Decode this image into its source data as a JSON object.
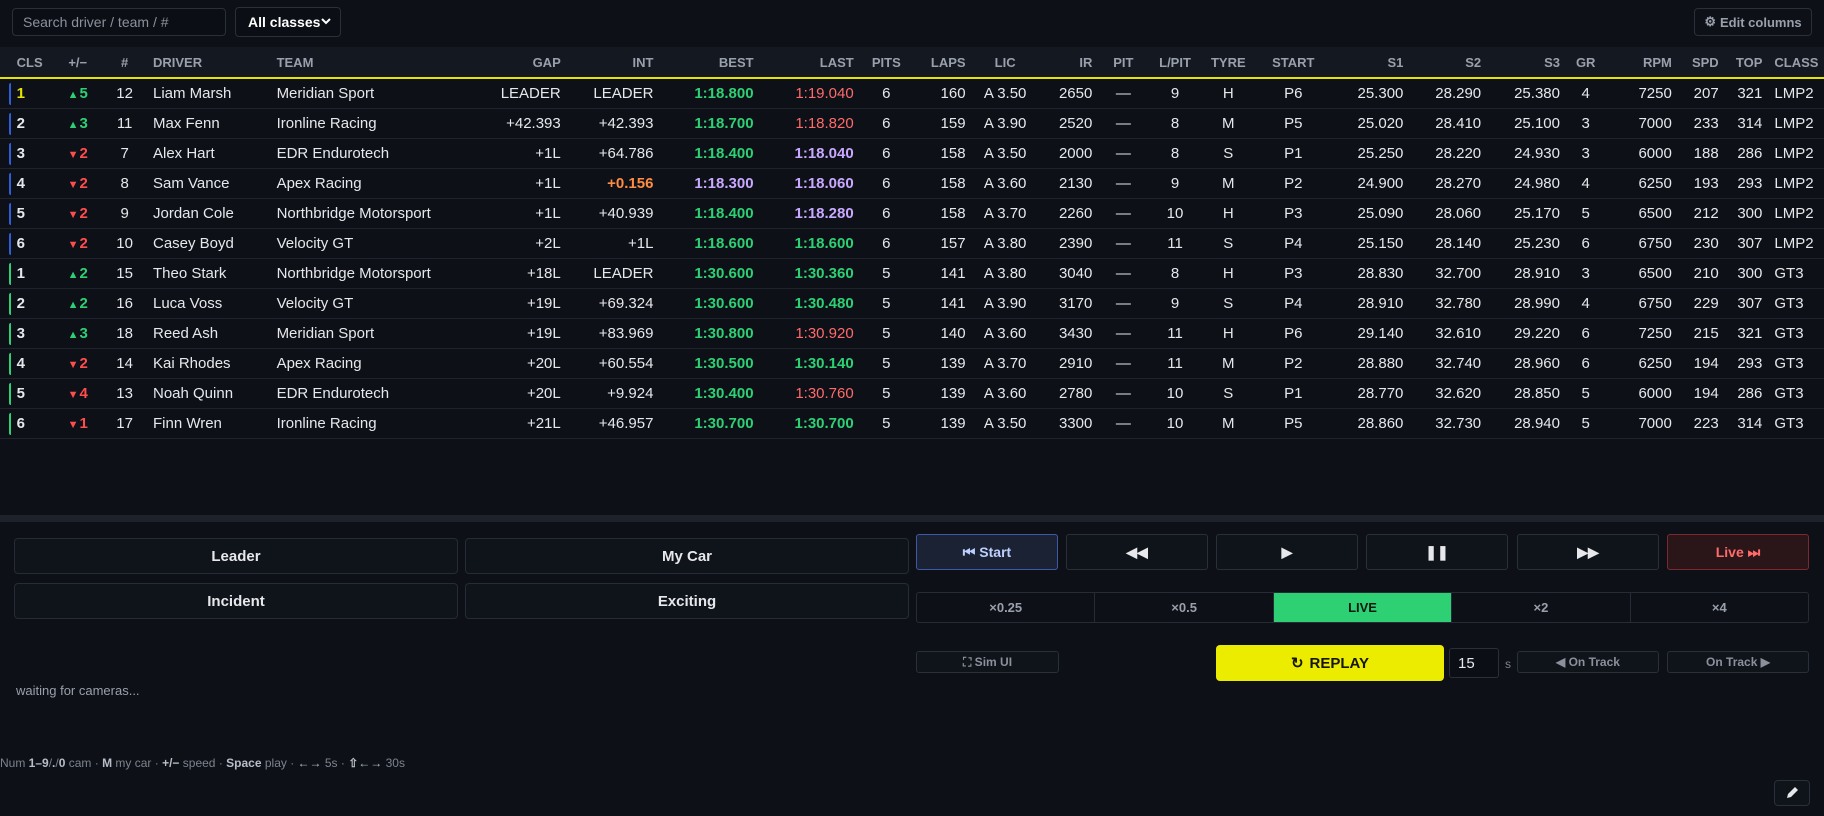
{
  "search": {
    "placeholder": "Search driver / team / #"
  },
  "class_filter": {
    "selected": "All classes"
  },
  "edit_columns": {
    "label": "Edit columns",
    "icon": "gear-icon"
  },
  "colors": {
    "yellow": "#e5e500",
    "lmp2": "#2f5fd8",
    "gt3": "#2ed074",
    "best_green": "#2ed074",
    "purple": "#c9a8ff",
    "red": "#ff6b6b",
    "orange": "#ff8c42"
  },
  "columns": [
    "CLS",
    "+/−",
    "#",
    "DRIVER",
    "TEAM",
    "GAP",
    "INT",
    "BEST",
    "LAST",
    "PITS",
    "LAPS",
    "LIC",
    "IR",
    "PIT",
    "L/PIT",
    "TYRE",
    "START",
    "S1",
    "S2",
    "S3",
    "GR",
    "RPM",
    "SPD",
    "TOP",
    "CLASS"
  ],
  "rows": [
    {
      "bar": "lmp2",
      "cls": "1",
      "cls_leader": true,
      "delta": "5",
      "dir": "up",
      "num": "12",
      "driver": "Liam Marsh",
      "team": "Meridian Sport",
      "gap": "LEADER",
      "int": "LEADER",
      "int_color": "",
      "best": "1:18.800",
      "best_color": "green",
      "last": "1:19.040",
      "last_color": "red",
      "pits": "6",
      "laps": "160",
      "lic": "A 3.50",
      "ir": "2650",
      "pit": "—",
      "lpit": "9",
      "tyre": "H",
      "start": "P6",
      "s1": "25.300",
      "s2": "28.290",
      "s3": "25.380",
      "gr": "4",
      "rpm": "7250",
      "spd": "207",
      "top": "321",
      "class": "LMP2"
    },
    {
      "bar": "lmp2",
      "cls": "2",
      "delta": "3",
      "dir": "up",
      "num": "11",
      "driver": "Max Fenn",
      "team": "Ironline Racing",
      "gap": "+42.393",
      "int": "+42.393",
      "int_color": "",
      "best": "1:18.700",
      "best_color": "green",
      "last": "1:18.820",
      "last_color": "red",
      "pits": "6",
      "laps": "159",
      "lic": "A 3.90",
      "ir": "2520",
      "pit": "—",
      "lpit": "8",
      "tyre": "M",
      "start": "P5",
      "s1": "25.020",
      "s2": "28.410",
      "s3": "25.100",
      "gr": "3",
      "rpm": "7000",
      "spd": "233",
      "top": "314",
      "class": "LMP2"
    },
    {
      "bar": "lmp2",
      "cls": "3",
      "delta": "2",
      "dir": "dn",
      "num": "7",
      "driver": "Alex Hart",
      "team": "EDR Endurotech",
      "gap": "+1L",
      "int": "+64.786",
      "int_color": "",
      "best": "1:18.400",
      "best_color": "green",
      "last": "1:18.040",
      "last_color": "purple",
      "pits": "6",
      "laps": "158",
      "lic": "A 3.50",
      "ir": "2000",
      "pit": "—",
      "lpit": "8",
      "tyre": "S",
      "start": "P1",
      "s1": "25.250",
      "s2": "28.220",
      "s3": "24.930",
      "gr": "3",
      "rpm": "6000",
      "spd": "188",
      "top": "286",
      "class": "LMP2"
    },
    {
      "bar": "lmp2",
      "cls": "4",
      "delta": "2",
      "dir": "dn",
      "num": "8",
      "driver": "Sam Vance",
      "team": "Apex Racing",
      "gap": "+1L",
      "int": "+0.156",
      "int_color": "orange",
      "best": "1:18.300",
      "best_color": "purple",
      "last": "1:18.060",
      "last_color": "purple",
      "pits": "6",
      "laps": "158",
      "lic": "A 3.60",
      "ir": "2130",
      "pit": "—",
      "lpit": "9",
      "tyre": "M",
      "start": "P2",
      "s1": "24.900",
      "s2": "28.270",
      "s3": "24.980",
      "gr": "4",
      "rpm": "6250",
      "spd": "193",
      "top": "293",
      "class": "LMP2"
    },
    {
      "bar": "lmp2",
      "cls": "5",
      "delta": "2",
      "dir": "dn",
      "num": "9",
      "driver": "Jordan Cole",
      "team": "Northbridge Motorsport",
      "gap": "+1L",
      "int": "+40.939",
      "int_color": "",
      "best": "1:18.400",
      "best_color": "green",
      "last": "1:18.280",
      "last_color": "purple",
      "pits": "6",
      "laps": "158",
      "lic": "A 3.70",
      "ir": "2260",
      "pit": "—",
      "lpit": "10",
      "tyre": "H",
      "start": "P3",
      "s1": "25.090",
      "s2": "28.060",
      "s3": "25.170",
      "gr": "5",
      "rpm": "6500",
      "spd": "212",
      "top": "300",
      "class": "LMP2"
    },
    {
      "bar": "lmp2",
      "cls": "6",
      "delta": "2",
      "dir": "dn",
      "num": "10",
      "driver": "Casey Boyd",
      "team": "Velocity GT",
      "gap": "+2L",
      "int": "+1L",
      "int_color": "",
      "best": "1:18.600",
      "best_color": "green",
      "last": "1:18.600",
      "last_color": "green",
      "pits": "6",
      "laps": "157",
      "lic": "A 3.80",
      "ir": "2390",
      "pit": "—",
      "lpit": "11",
      "tyre": "S",
      "start": "P4",
      "s1": "25.150",
      "s2": "28.140",
      "s3": "25.230",
      "gr": "6",
      "rpm": "6750",
      "spd": "230",
      "top": "307",
      "class": "LMP2"
    },
    {
      "bar": "gt3",
      "cls": "1",
      "delta": "2",
      "dir": "up",
      "num": "15",
      "driver": "Theo Stark",
      "team": "Northbridge Motorsport",
      "gap": "+18L",
      "int": "LEADER",
      "int_color": "",
      "best": "1:30.600",
      "best_color": "green",
      "last": "1:30.360",
      "last_color": "green",
      "pits": "5",
      "laps": "141",
      "lic": "A 3.80",
      "ir": "3040",
      "pit": "—",
      "lpit": "8",
      "tyre": "H",
      "start": "P3",
      "s1": "28.830",
      "s2": "32.700",
      "s3": "28.910",
      "gr": "3",
      "rpm": "6500",
      "spd": "210",
      "top": "300",
      "class": "GT3"
    },
    {
      "bar": "gt3",
      "cls": "2",
      "delta": "2",
      "dir": "up",
      "num": "16",
      "driver": "Luca Voss",
      "team": "Velocity GT",
      "gap": "+19L",
      "int": "+69.324",
      "int_color": "",
      "best": "1:30.600",
      "best_color": "green",
      "last": "1:30.480",
      "last_color": "green",
      "pits": "5",
      "laps": "141",
      "lic": "A 3.90",
      "ir": "3170",
      "pit": "—",
      "lpit": "9",
      "tyre": "S",
      "start": "P4",
      "s1": "28.910",
      "s2": "32.780",
      "s3": "28.990",
      "gr": "4",
      "rpm": "6750",
      "spd": "229",
      "top": "307",
      "class": "GT3"
    },
    {
      "bar": "gt3",
      "cls": "3",
      "delta": "3",
      "dir": "up",
      "num": "18",
      "driver": "Reed Ash",
      "team": "Meridian Sport",
      "gap": "+19L",
      "int": "+83.969",
      "int_color": "",
      "best": "1:30.800",
      "best_color": "green",
      "last": "1:30.920",
      "last_color": "red",
      "pits": "5",
      "laps": "140",
      "lic": "A 3.60",
      "ir": "3430",
      "pit": "—",
      "lpit": "11",
      "tyre": "H",
      "start": "P6",
      "s1": "29.140",
      "s2": "32.610",
      "s3": "29.220",
      "gr": "6",
      "rpm": "7250",
      "spd": "215",
      "top": "321",
      "class": "GT3"
    },
    {
      "bar": "gt3",
      "cls": "4",
      "delta": "2",
      "dir": "dn",
      "num": "14",
      "driver": "Kai Rhodes",
      "team": "Apex Racing",
      "gap": "+20L",
      "int": "+60.554",
      "int_color": "",
      "best": "1:30.500",
      "best_color": "green",
      "last": "1:30.140",
      "last_color": "green",
      "pits": "5",
      "laps": "139",
      "lic": "A 3.70",
      "ir": "2910",
      "pit": "—",
      "lpit": "11",
      "tyre": "M",
      "start": "P2",
      "s1": "28.880",
      "s2": "32.740",
      "s3": "28.960",
      "gr": "6",
      "rpm": "6250",
      "spd": "194",
      "top": "293",
      "class": "GT3"
    },
    {
      "bar": "gt3",
      "cls": "5",
      "delta": "4",
      "dir": "dn",
      "num": "13",
      "driver": "Noah Quinn",
      "team": "EDR Endurotech",
      "gap": "+20L",
      "int": "+9.924",
      "int_color": "",
      "best": "1:30.400",
      "best_color": "green",
      "last": "1:30.760",
      "last_color": "red",
      "pits": "5",
      "laps": "139",
      "lic": "A 3.60",
      "ir": "2780",
      "pit": "—",
      "lpit": "10",
      "tyre": "S",
      "start": "P1",
      "s1": "28.770",
      "s2": "32.620",
      "s3": "28.850",
      "gr": "5",
      "rpm": "6000",
      "spd": "194",
      "top": "286",
      "class": "GT3"
    },
    {
      "bar": "gt3",
      "cls": "6",
      "delta": "1",
      "dir": "dn",
      "num": "17",
      "driver": "Finn Wren",
      "team": "Ironline Racing",
      "gap": "+21L",
      "int": "+46.957",
      "int_color": "",
      "best": "1:30.700",
      "best_color": "green",
      "last": "1:30.700",
      "last_color": "green",
      "pits": "5",
      "laps": "139",
      "lic": "A 3.50",
      "ir": "3300",
      "pit": "—",
      "lpit": "10",
      "tyre": "M",
      "start": "P5",
      "s1": "28.860",
      "s2": "32.730",
      "s3": "28.940",
      "gr": "5",
      "rpm": "7000",
      "spd": "223",
      "top": "314",
      "class": "GT3"
    }
  ],
  "cameras": {
    "leader": "Leader",
    "my_car": "My Car",
    "incident": "Incident",
    "exciting": "Exciting"
  },
  "status": "waiting for cameras...",
  "playback": {
    "start": "⏮ Start",
    "rewind": "◀◀",
    "play": "▶",
    "pause": "❚❚",
    "forward": "▶▶",
    "live": "Live ⏭"
  },
  "speeds": [
    "×0.25",
    "×0.5",
    "LIVE",
    "×2",
    "×4"
  ],
  "speed_active": "LIVE",
  "sim_ui": "⛶ Sim UI",
  "replay": {
    "label": "REPLAY",
    "icon": "↻"
  },
  "replay_seconds": "15",
  "seconds_unit": "s",
  "on_track_prev": "◀ On Track",
  "on_track_next": "On Track ▶",
  "hint": [
    {
      "t": "Num ",
      "b": false
    },
    {
      "t": "1–9",
      "b": true
    },
    {
      "t": "/",
      "b": false
    },
    {
      "t": ".",
      "b": true
    },
    {
      "t": "/",
      "b": false
    },
    {
      "t": "0",
      "b": true
    },
    {
      "t": " cam · ",
      "b": false
    },
    {
      "t": "M",
      "b": true
    },
    {
      "t": " my car · ",
      "b": false
    },
    {
      "t": "+/−",
      "b": true
    },
    {
      "t": " speed · ",
      "b": false
    },
    {
      "t": "Space",
      "b": true
    },
    {
      "t": " play · ",
      "b": false
    },
    {
      "t": "←→",
      "b": true
    },
    {
      "t": " 5s · ",
      "b": false
    },
    {
      "t": "⇧←→",
      "b": true
    },
    {
      "t": " 30s",
      "b": false
    }
  ]
}
